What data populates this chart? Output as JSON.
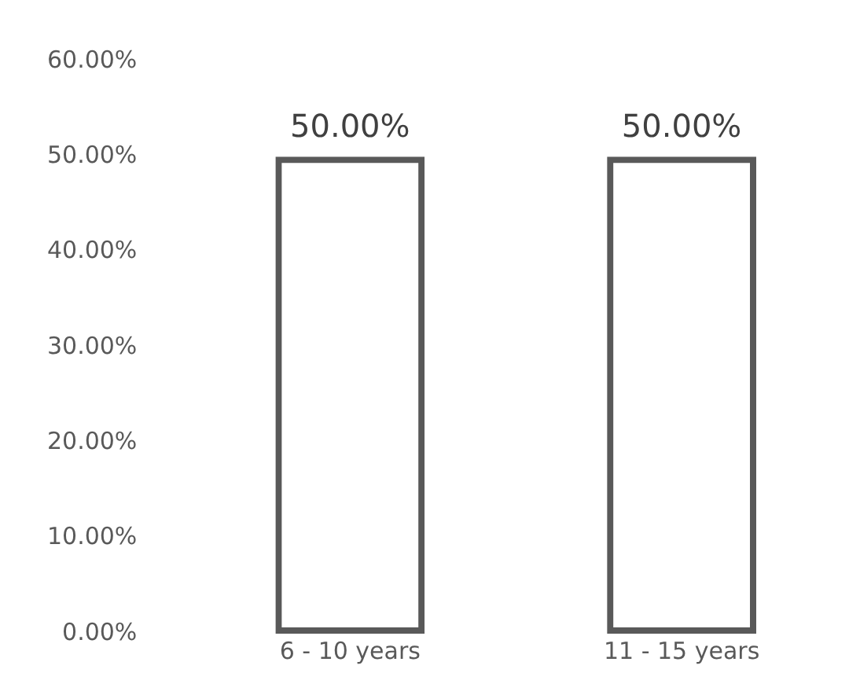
{
  "chart_data": {
    "type": "bar",
    "categories": [
      "6 - 10 years",
      "11 - 15 years"
    ],
    "series": [
      {
        "color": "#595959",
        "values": [
          50,
          50
        ],
        "value_labels": [
          "50.00%",
          "50.00%"
        ]
      }
    ],
    "ylim": [
      0,
      60
    ],
    "yticks": [
      {
        "value": 0,
        "label": "0.00%"
      },
      {
        "value": 10,
        "label": "10.00%"
      },
      {
        "value": 20,
        "label": "20.00%"
      },
      {
        "value": 30,
        "label": "30.00%"
      },
      {
        "value": 40,
        "label": "40.00%"
      },
      {
        "value": 50,
        "label": "50.00%"
      },
      {
        "value": 60,
        "label": "60.00%"
      }
    ],
    "grid": false,
    "legend": false
  }
}
